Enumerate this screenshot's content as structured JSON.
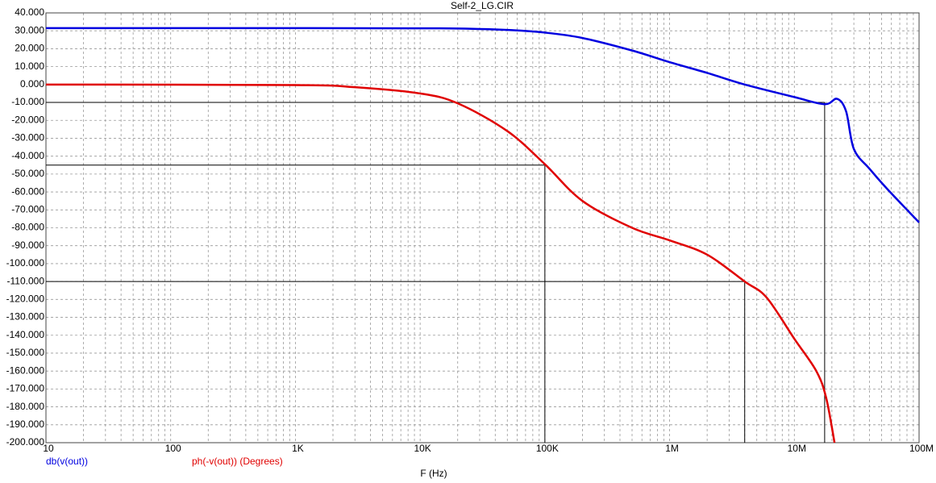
{
  "chart_data": {
    "type": "line",
    "title": "Self-2_LG.CIR",
    "x_label": "F (Hz)",
    "xscale": "log",
    "grid": true,
    "xlim": [
      10,
      100000000
    ],
    "ylim": [
      -200,
      40
    ],
    "xticks": [
      10,
      100,
      {
        "value": 1000,
        "label": "1K"
      },
      {
        "value": 10000,
        "label": "10K"
      },
      {
        "value": 100000,
        "label": "100K"
      },
      {
        "value": 1000000,
        "label": "1M"
      },
      {
        "value": 10000000,
        "label": "10M"
      },
      {
        "value": 100000000,
        "label": "100M"
      }
    ],
    "yticks": [
      {
        "value": 40,
        "label": "40.000"
      },
      {
        "value": 30,
        "label": "30.000"
      },
      {
        "value": 20,
        "label": "20.000"
      },
      {
        "value": 10,
        "label": "10.000"
      },
      {
        "value": 0,
        "label": "0.000"
      },
      {
        "value": -10,
        "label": "-10.000"
      },
      {
        "value": -20,
        "label": "-20.000"
      },
      {
        "value": -30,
        "label": "-30.000"
      },
      {
        "value": -40,
        "label": "-40.000"
      },
      {
        "value": -50,
        "label": "-50.000"
      },
      {
        "value": -60,
        "label": "-60.000"
      },
      {
        "value": -70,
        "label": "-70.000"
      },
      {
        "value": -80,
        "label": "-80.000"
      },
      {
        "value": -90,
        "label": "-90.000"
      },
      {
        "value": -100,
        "label": "-100.000"
      },
      {
        "value": -110,
        "label": "-110.000"
      },
      {
        "value": -120,
        "label": "-120.000"
      },
      {
        "value": -130,
        "label": "-130.000"
      },
      {
        "value": -140,
        "label": "-140.000"
      },
      {
        "value": -150,
        "label": "-150.000"
      },
      {
        "value": -160,
        "label": "-160.000"
      },
      {
        "value": -170,
        "label": "-170.000"
      },
      {
        "value": -180,
        "label": "-180.000"
      },
      {
        "value": -190,
        "label": "-190.000"
      },
      {
        "value": -200,
        "label": "-200.000"
      }
    ],
    "series": [
      {
        "name": "db(v(out))",
        "color": "#0000e0",
        "x": [
          10,
          1000,
          10000,
          20000,
          50000,
          100000,
          200000,
          500000,
          1000000,
          2000000,
          4000000,
          10000000,
          17500000,
          22000000,
          26000000,
          30000000,
          40000000,
          55000000,
          100000000
        ],
        "values": [
          31.5,
          31.5,
          31.4,
          31.3,
          30.5,
          29,
          26,
          19,
          12.5,
          6.5,
          0,
          -7,
          -11,
          -8,
          -15,
          -36,
          -47,
          -58,
          -77
        ]
      },
      {
        "name": "ph(-v(out)) (Degrees)",
        "color": "#e00000",
        "x": [
          10,
          1000,
          3000,
          10000,
          20000,
          50000,
          100000,
          200000,
          500000,
          1000000,
          2000000,
          4000000,
          6000000,
          10000000,
          15000000,
          18000000,
          21000000
        ],
        "values": [
          0,
          -0.3,
          -1.5,
          -5,
          -10.5,
          -26,
          -44.5,
          -65,
          -80,
          -87,
          -95,
          -110,
          -119,
          -142,
          -160,
          -175,
          -200
        ]
      }
    ],
    "cursors": [
      {
        "x": 100000,
        "y": -45
      },
      {
        "x": 4000000,
        "y": -110
      },
      {
        "x": 17500000,
        "y": -10
      }
    ]
  }
}
